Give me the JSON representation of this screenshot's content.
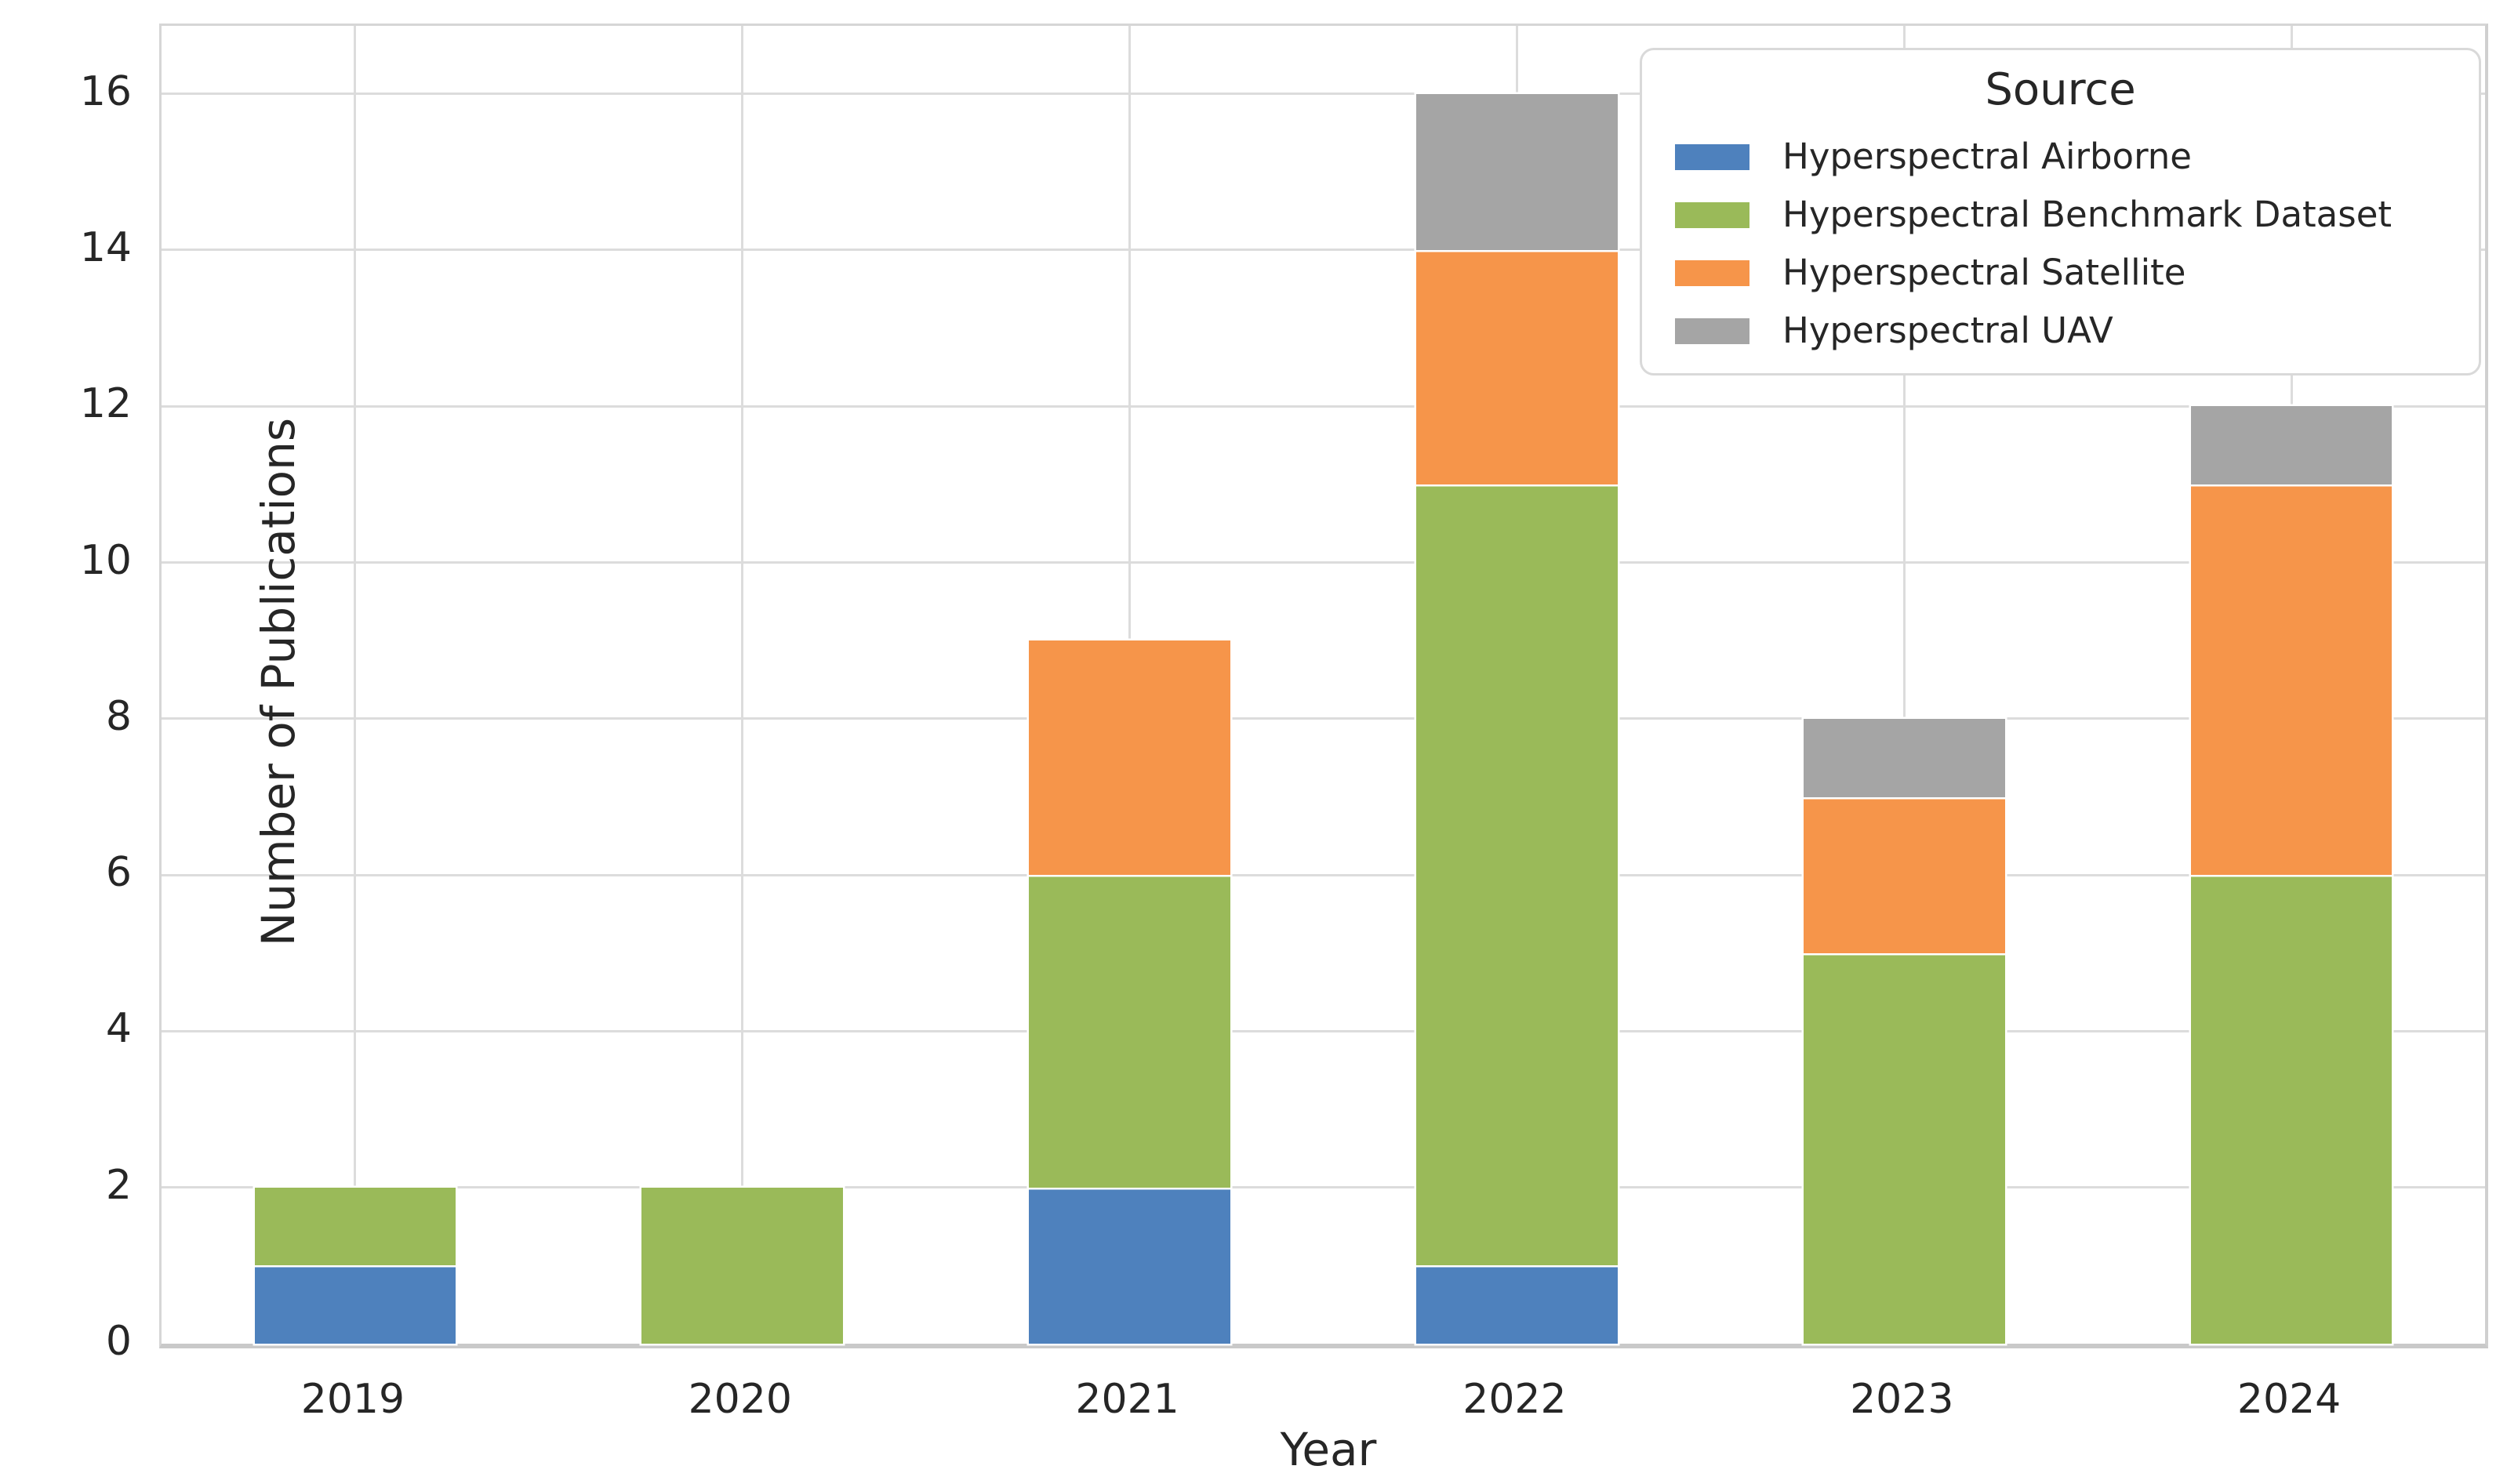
{
  "figure": {
    "ylabel": "Number of Publications",
    "xlabel": "Year"
  },
  "legend": {
    "title": "Source"
  },
  "colors": {
    "airborne_blue": "#4e81bd",
    "benchmark_green": "#9aba59",
    "satellite_orange": "#f6954a",
    "uav_gray": "#a5a5a5",
    "grid": "#dcdcdc",
    "text": "#262626"
  },
  "chart_data": {
    "type": "bar",
    "stacked": true,
    "title": "",
    "xlabel": "Year",
    "ylabel": "Number of Publications",
    "categories": [
      "2019",
      "2020",
      "2021",
      "2022",
      "2023",
      "2024"
    ],
    "series": [
      {
        "name": "Hyperspectral Airborne",
        "color": "#4e81bd",
        "values": [
          1,
          0,
          2,
          1,
          0,
          0
        ]
      },
      {
        "name": "Hyperspectral Benchmark Dataset",
        "color": "#9aba59",
        "values": [
          1,
          2,
          4,
          10,
          5,
          6
        ]
      },
      {
        "name": "Hyperspectral Satellite",
        "color": "#f6954a",
        "values": [
          0,
          0,
          3,
          3,
          2,
          5
        ]
      },
      {
        "name": "Hyperspectral UAV",
        "color": "#a5a5a5",
        "values": [
          0,
          0,
          0,
          2,
          1,
          1
        ]
      }
    ],
    "totals": [
      2,
      2,
      9,
      16,
      8,
      12
    ],
    "ylim": [
      0,
      16.87
    ],
    "yticks": [
      0,
      2,
      4,
      6,
      8,
      10,
      12,
      14,
      16
    ],
    "grid": true,
    "legend_title": "Source",
    "legend_position": "upper right"
  }
}
